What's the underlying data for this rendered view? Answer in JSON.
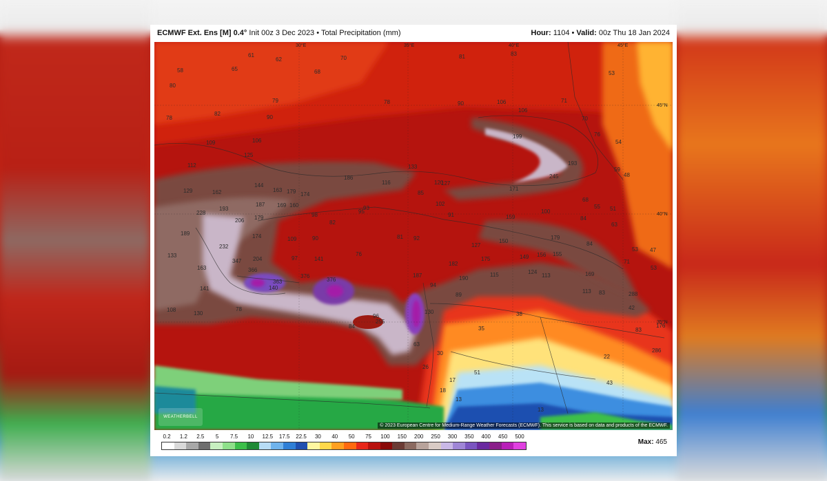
{
  "header": {
    "model": "ECMWF Ext. Ens [M]",
    "resolution": "0.4°",
    "init": "Init 00z 3 Dec 2023",
    "field": "Total Precipitation (mm)",
    "hour_label": "Hour:",
    "hour_value": "1104",
    "valid_label": "Valid:",
    "valid_value": "00z Thu 18 Jan 2024"
  },
  "map": {
    "copyright": "© 2023 European Centre for Medium-Range Weather Forecasts (ECMWF). This service is based on data and products of the ECMWF.",
    "logo": "WEATHERBELL",
    "gridline_labels": [
      "30°E",
      "35°E",
      "40°E",
      "45°E",
      "45°N",
      "40°N",
      "35°N"
    ],
    "values": [
      "58",
      "65",
      "61",
      "62",
      "68",
      "70",
      "81",
      "83",
      "53",
      "80",
      "78",
      "82",
      "90",
      "79",
      "78",
      "90",
      "106",
      "106",
      "71",
      "70",
      "109",
      "106",
      "76",
      "54",
      "125",
      "112",
      "133",
      "186",
      "116",
      "120",
      "127",
      "171",
      "193",
      "245",
      "199",
      "59",
      "48",
      "144",
      "163",
      "179",
      "174",
      "85",
      "102",
      "129",
      "162",
      "187",
      "169",
      "160",
      "228",
      "193",
      "206",
      "95",
      "98",
      "93",
      "91",
      "100",
      "68",
      "55",
      "51",
      "179",
      "159",
      "84",
      "63",
      "189",
      "174",
      "82",
      "109",
      "90",
      "81",
      "92",
      "150",
      "179",
      "84",
      "53",
      "133",
      "204",
      "232",
      "347",
      "97",
      "141",
      "76",
      "127",
      "182",
      "175",
      "149",
      "156",
      "155",
      "71",
      "53",
      "163",
      "366",
      "363",
      "376",
      "187",
      "115",
      "124",
      "113",
      "169",
      "47",
      "141",
      "376",
      "140",
      "190",
      "94",
      "89",
      "113",
      "83",
      "288",
      "108",
      "130",
      "78",
      "96",
      "255",
      "130",
      "42",
      "38",
      "35",
      "176",
      "84",
      "83",
      "286",
      "63",
      "30",
      "22",
      "51",
      "26",
      "17",
      "43",
      "18",
      "13",
      "13"
    ],
    "max_label": "Max:",
    "max_value": "465"
  },
  "legend": {
    "labels": [
      "0.2",
      "1.2",
      "2.5",
      "5",
      "7.5",
      "10",
      "12.5",
      "17.5",
      "22.5",
      "30",
      "40",
      "50",
      "75",
      "100",
      "150",
      "200",
      "250",
      "300",
      "350",
      "400",
      "450",
      "500"
    ],
    "colors": [
      "#ffffff",
      "#d9d9d9",
      "#a8a8a8",
      "#6e6e6e",
      "#c7f0c0",
      "#8ee08a",
      "#3cbf4a",
      "#1f8a35",
      "#b7dcf5",
      "#6fb3ec",
      "#2f7fd6",
      "#1f4fb0",
      "#fff7a0",
      "#ffd84a",
      "#ffa020",
      "#ff6a10",
      "#e8281a",
      "#b8120e",
      "#8a0a08",
      "#6b3b34",
      "#8b6a60",
      "#b8a39b",
      "#d9cbc5",
      "#c9b8e6",
      "#9f86d6",
      "#7a55c0",
      "#6a2aa0",
      "#8a1f8a",
      "#b81fb8",
      "#e040e0"
    ]
  }
}
